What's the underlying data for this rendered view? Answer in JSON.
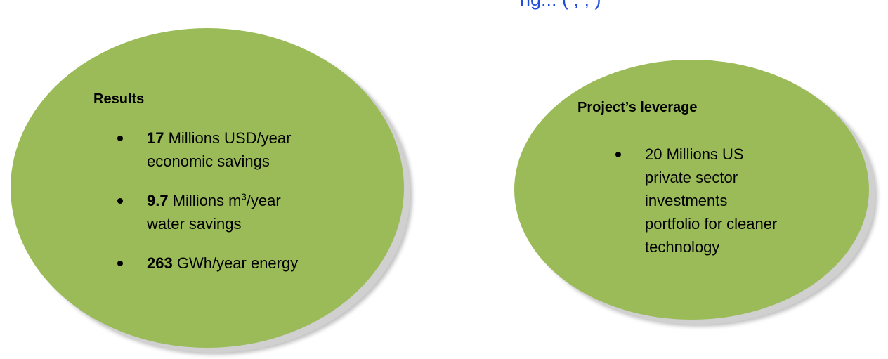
{
  "header_fragment": "ng...   (      ,       ,        )",
  "results_panel": {
    "heading": "Results",
    "items": [
      {
        "value": "17",
        "text_line1": " Millions USD/year",
        "text_line2": "economic savings"
      },
      {
        "value": "9.7",
        "text_pre": " Millions m",
        "superscript": "3",
        "text_post": "/year",
        "text_line2": "water savings"
      },
      {
        "value": "263",
        "text_line1": " GWh/year energy"
      }
    ]
  },
  "leverage_panel": {
    "heading": "Project’s leverage",
    "lines": [
      "20 Millions US",
      "private sector",
      "investments",
      "portfolio for cleaner",
      "technology"
    ]
  },
  "colors": {
    "ellipse_fill": "#9bbb59",
    "header_text": "#1f4ddf"
  }
}
